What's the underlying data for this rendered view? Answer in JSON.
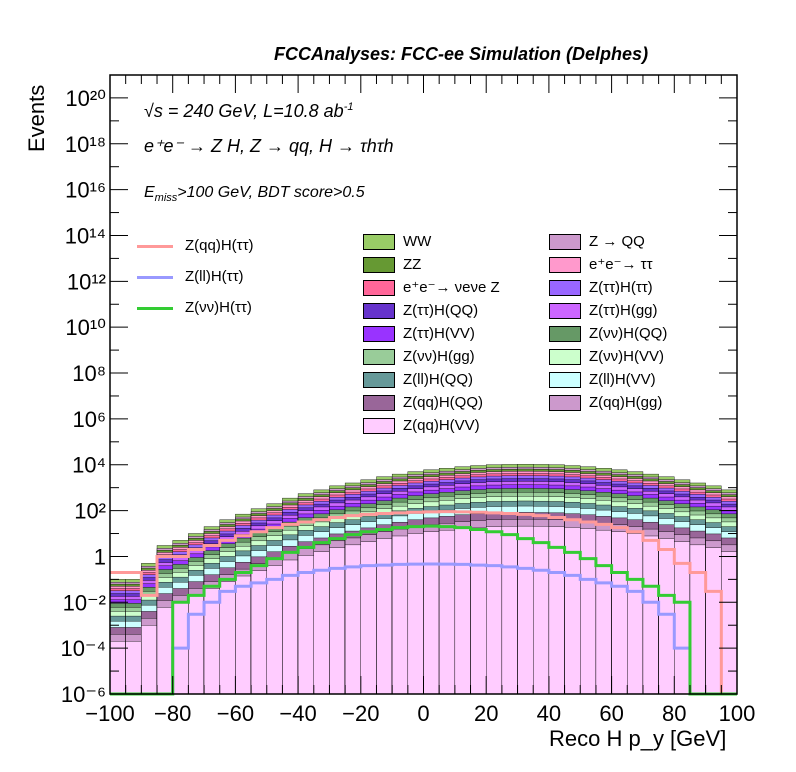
{
  "header": "FCCAnalyses: FCC-ee Simulation (Delphes)",
  "annotations": {
    "energy": "√s = 240 GeV, L=10.8 ab",
    "energy_sup": "-1",
    "process": "e⁺e⁻ → Z H, Z → qq, H → τhτh",
    "cuts_pre": "E",
    "cuts_sub": "miss",
    "cuts_post": ">100 GeV, BDT score>0.5"
  },
  "chart_data": {
    "type": "bar",
    "title": "FCCAnalyses: FCC-ee Simulation (Delphes)",
    "xlabel": "Reco H p_y [GeV]",
    "ylabel": "Events",
    "xlim": [
      -100,
      100
    ],
    "ylim": [
      1e-06,
      1e+21
    ],
    "log_y": true,
    "stacked": true,
    "bin_width": 5,
    "x_ticks": [
      "−100",
      "−80",
      "−60",
      "−40",
      "−20",
      "0",
      "20",
      "40",
      "60",
      "80",
      "100"
    ],
    "y_ticks": [
      "10⁻⁶",
      "10⁻⁴",
      "10⁻²",
      "1",
      "10²",
      "10⁴",
      "10⁶",
      "10⁸",
      "10¹⁰",
      "10¹²",
      "10¹⁴",
      "10¹⁶",
      "10¹⁸",
      "10²⁰"
    ],
    "legend_position": "top-center",
    "signal_legend_position": "top-left",
    "total_stack_top": [
      0.1,
      0.1,
      0.5,
      3,
      5,
      10,
      20,
      40,
      70,
      120,
      200,
      350,
      550,
      800,
      1200,
      1600,
      2200,
      3000,
      3900,
      5000,
      6000,
      7000,
      8200,
      9200,
      10000,
      10300,
      10500,
      10300,
      10000,
      9200,
      8200,
      7000,
      6000,
      5000,
      3900,
      3000,
      2200,
      1600,
      1200,
      800
    ],
    "backgrounds": [
      {
        "name": "WW",
        "color": "#99cc66"
      },
      {
        "name": "Z → QQ",
        "color": "#cc99cc"
      },
      {
        "name": "ZZ",
        "color": "#669933"
      },
      {
        "name": "e⁺e⁻→ ττ",
        "color": "#ff99cc"
      },
      {
        "name": "e⁺e⁻→ νeνe Z",
        "color": "#ff6699"
      },
      {
        "name": "Z(ττ)H(ττ)",
        "color": "#9966ff"
      },
      {
        "name": "Z(ττ)H(QQ)",
        "color": "#6633cc"
      },
      {
        "name": "Z(ττ)H(gg)",
        "color": "#cc66ff"
      },
      {
        "name": "Z(ττ)H(VV)",
        "color": "#9933ff"
      },
      {
        "name": "Z(νν)H(QQ)",
        "color": "#669966"
      },
      {
        "name": "Z(νν)H(gg)",
        "color": "#99cc99"
      },
      {
        "name": "Z(νν)H(VV)",
        "color": "#ccffcc"
      },
      {
        "name": "Z(ll)H(QQ)",
        "color": "#669999"
      },
      {
        "name": "Z(ll)H(VV)",
        "color": "#ccffff"
      },
      {
        "name": "Z(qq)H(QQ)",
        "color": "#996699"
      },
      {
        "name": "Z(qq)H(gg)",
        "color": "#cc99cc"
      },
      {
        "name": "Z(qq)H(VV)",
        "color": "#ffccff"
      }
    ],
    "signals": [
      {
        "name": "Z(qq)H(ττ)",
        "color": "#ff9999",
        "values": [
          0.2,
          0.2,
          0.02,
          1,
          1,
          2,
          3,
          5,
          8,
          12,
          18,
          25,
          32,
          40,
          50,
          60,
          68,
          75,
          80,
          85,
          88,
          90,
          88,
          85,
          80,
          75,
          68,
          60,
          50,
          40,
          32,
          25,
          18,
          12,
          5,
          2,
          0.5,
          0.2,
          0.03,
          1e-06
        ]
      },
      {
        "name": "Z(ll)H(ττ)",
        "color": "#9999ff",
        "values": [
          1e-06,
          1e-06,
          1e-06,
          1e-06,
          0.0001,
          0.003,
          0.01,
          0.03,
          0.05,
          0.07,
          0.1,
          0.15,
          0.2,
          0.25,
          0.3,
          0.35,
          0.4,
          0.42,
          0.45,
          0.46,
          0.47,
          0.46,
          0.45,
          0.42,
          0.4,
          0.35,
          0.3,
          0.25,
          0.2,
          0.15,
          0.1,
          0.07,
          0.05,
          0.03,
          0.01,
          0.003,
          0.0001,
          1e-06,
          1e-06,
          1e-06
        ]
      },
      {
        "name": "Z(νν)H(ττ)",
        "color": "#33cc33",
        "values": [
          1e-06,
          1e-06,
          1e-06,
          1e-06,
          0.01,
          0.02,
          0.05,
          0.1,
          0.2,
          0.4,
          0.8,
          1.5,
          2.5,
          4,
          6,
          9,
          12,
          15,
          18,
          20,
          21,
          20,
          18,
          15,
          12,
          9,
          6,
          4,
          2.5,
          1.5,
          0.8,
          0.4,
          0.2,
          0.1,
          0.05,
          0.02,
          0.01,
          1e-06,
          1e-06,
          1e-06
        ]
      }
    ]
  }
}
